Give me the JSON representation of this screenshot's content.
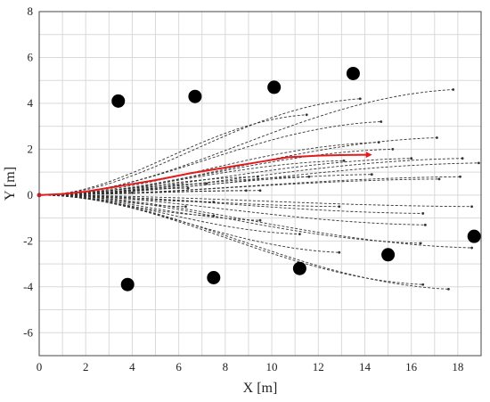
{
  "chart_data": {
    "type": "line",
    "xlabel": "X [m]",
    "ylabel": "Y [m]",
    "xlim": [
      0,
      19
    ],
    "ylim": [
      -7,
      8
    ],
    "xticks": [
      0,
      2,
      4,
      6,
      8,
      10,
      12,
      14,
      16,
      18
    ],
    "yticks": [
      -6,
      -4,
      -2,
      0,
      2,
      4,
      6,
      8
    ],
    "grid": true,
    "colors": {
      "trajectory": "#333333",
      "best_path": "#e41a1c",
      "obstacle": "#000000"
    },
    "obstacles": [
      {
        "x": 3.4,
        "y": 4.1
      },
      {
        "x": 6.7,
        "y": 4.3
      },
      {
        "x": 10.1,
        "y": 4.7
      },
      {
        "x": 13.5,
        "y": 5.3
      },
      {
        "x": 3.8,
        "y": -3.9
      },
      {
        "x": 7.5,
        "y": -3.6
      },
      {
        "x": 11.2,
        "y": -3.2
      },
      {
        "x": 15.0,
        "y": -2.6
      },
      {
        "x": 18.7,
        "y": -1.8
      }
    ],
    "candidate_endpoints": [
      {
        "x": 17.8,
        "y": 4.6
      },
      {
        "x": 13.8,
        "y": 4.2
      },
      {
        "x": 11.5,
        "y": 3.5
      },
      {
        "x": 14.7,
        "y": 3.2
      },
      {
        "x": 17.1,
        "y": 2.5
      },
      {
        "x": 14.6,
        "y": 2.3
      },
      {
        "x": 15.2,
        "y": 2.0
      },
      {
        "x": 18.9,
        "y": 1.4
      },
      {
        "x": 18.2,
        "y": 1.6
      },
      {
        "x": 16.0,
        "y": 1.6
      },
      {
        "x": 13.1,
        "y": 1.5
      },
      {
        "x": 17.2,
        "y": 0.7
      },
      {
        "x": 14.3,
        "y": 0.9
      },
      {
        "x": 18.1,
        "y": 0.8
      },
      {
        "x": 11.6,
        "y": 0.8
      },
      {
        "x": 9.4,
        "y": 0.8
      },
      {
        "x": 7.2,
        "y": 0.5
      },
      {
        "x": 9.5,
        "y": 0.2
      },
      {
        "x": 8.9,
        "y": 0.2
      },
      {
        "x": 6.4,
        "y": 0.3
      },
      {
        "x": 4.0,
        "y": 0.1
      },
      {
        "x": 7.5,
        "y": -0.3
      },
      {
        "x": 6.3,
        "y": -0.5
      },
      {
        "x": 12.9,
        "y": -0.5
      },
      {
        "x": 16.5,
        "y": -0.8
      },
      {
        "x": 18.6,
        "y": -0.5
      },
      {
        "x": 7.5,
        "y": -0.9
      },
      {
        "x": 9.5,
        "y": -1.1
      },
      {
        "x": 11.2,
        "y": -1.7
      },
      {
        "x": 16.6,
        "y": -1.3
      },
      {
        "x": 16.4,
        "y": -2.1
      },
      {
        "x": 12.9,
        "y": -2.5
      },
      {
        "x": 16.5,
        "y": -3.9
      },
      {
        "x": 17.6,
        "y": -4.1
      },
      {
        "x": 18.6,
        "y": -2.3
      }
    ],
    "best_path": [
      {
        "x": 0.0,
        "y": 0.0
      },
      {
        "x": 1.0,
        "y": 0.05
      },
      {
        "x": 2.0,
        "y": 0.15
      },
      {
        "x": 3.5,
        "y": 0.4
      },
      {
        "x": 5.0,
        "y": 0.65
      },
      {
        "x": 6.5,
        "y": 0.95
      },
      {
        "x": 8.0,
        "y": 1.2
      },
      {
        "x": 9.5,
        "y": 1.45
      },
      {
        "x": 10.7,
        "y": 1.65
      },
      {
        "x": 12.0,
        "y": 1.72
      },
      {
        "x": 13.2,
        "y": 1.75
      },
      {
        "x": 14.2,
        "y": 1.76
      }
    ]
  }
}
